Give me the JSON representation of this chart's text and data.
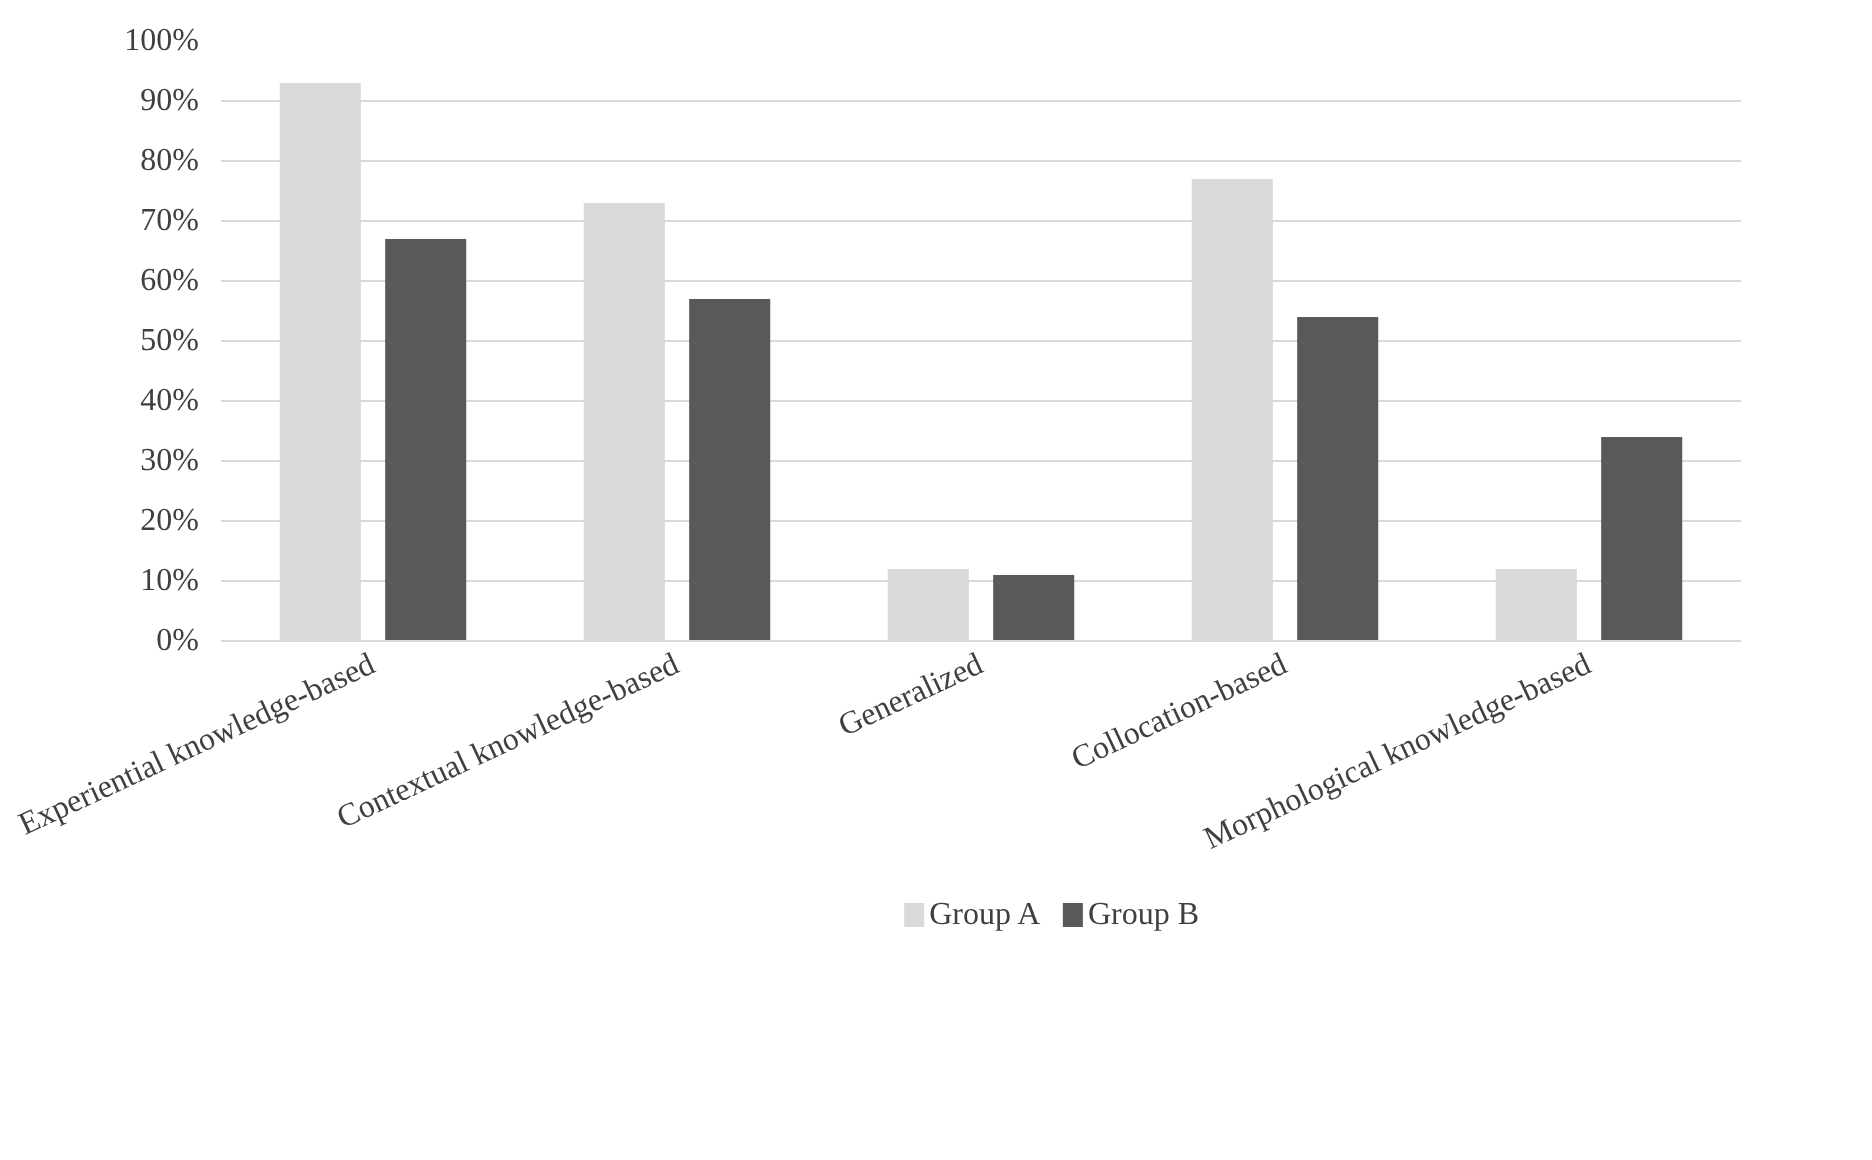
{
  "chart_data": {
    "type": "bar",
    "categories": [
      "Experiential knowledge-based",
      "Contextual knowledge-based",
      "Generalized",
      "Collocation-based",
      "Morphological knowledge-based"
    ],
    "series": [
      {
        "name": "Group A",
        "color": "#d9d9d9",
        "values": [
          93,
          73,
          12,
          77,
          12
        ]
      },
      {
        "name": "Group B",
        "color": "#595959",
        "values": [
          67,
          57,
          11,
          54,
          34
        ]
      }
    ],
    "ylim": [
      0,
      100
    ],
    "yticks": [
      {
        "value": 0,
        "label": "0%"
      },
      {
        "value": 10,
        "label": "10%"
      },
      {
        "value": 20,
        "label": "20%"
      },
      {
        "value": 30,
        "label": "30%"
      },
      {
        "value": 40,
        "label": "40%"
      },
      {
        "value": 50,
        "label": "50%"
      },
      {
        "value": 60,
        "label": "60%"
      },
      {
        "value": 70,
        "label": "70%"
      },
      {
        "value": 80,
        "label": "80%"
      },
      {
        "value": 90,
        "label": "90%"
      },
      {
        "value": 100,
        "label": "100%"
      }
    ],
    "grid": "y",
    "legend": "bottom"
  }
}
